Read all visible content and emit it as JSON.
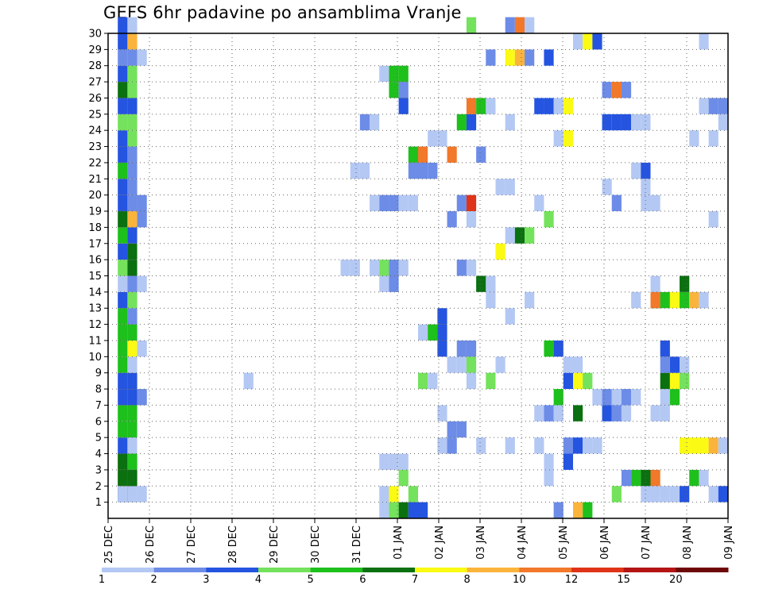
{
  "chart_data": {
    "type": "heatmap",
    "title": "GEFS 6hr padavine po ansamblima Vranje",
    "y_ticks": [
      "1",
      "2",
      "3",
      "4",
      "5",
      "6",
      "7",
      "8",
      "9",
      "10",
      "11",
      "12",
      "13",
      "14",
      "15",
      "16",
      "17",
      "18",
      "19",
      "20",
      "21",
      "22",
      "23",
      "24",
      "25",
      "26",
      "27",
      "28",
      "29",
      "30"
    ],
    "ylim": [
      0,
      30
    ],
    "x_ticks": [
      "25 DEC",
      "26 DEC",
      "27 DEC",
      "28 DEC",
      "29 DEC",
      "30 DEC",
      "31 DEC",
      "01 JAN",
      "02 JAN",
      "03 JAN",
      "04 JAN",
      "05 JAN",
      "06 JAN",
      "07 JAN",
      "08 JAN",
      "09 JAN"
    ],
    "xlim_steps": [
      0,
      60
    ],
    "grid": true,
    "colorbar": {
      "labels": [
        "1",
        "2",
        "3",
        "4",
        "5",
        "6",
        "7",
        "8",
        "10",
        "12",
        "15",
        "20"
      ],
      "colors": [
        "#b4c8f4",
        "#6c8ce8",
        "#2454e0",
        "#74e25c",
        "#1ec01c",
        "#0a7010",
        "#fafa14",
        "#fab43c",
        "#f2782a",
        "#e03418",
        "#b41414",
        "#6e0808"
      ]
    },
    "cells": [
      [
        1,
        1,
        2
      ],
      [
        1,
        1,
        0
      ],
      [
        1,
        2,
        7
      ],
      [
        1,
        2,
        5
      ],
      [
        1,
        3,
        7
      ],
      [
        1,
        3,
        5
      ],
      [
        1,
        4,
        2
      ],
      [
        1,
        5,
        4
      ],
      [
        1,
        6,
        4
      ],
      [
        1,
        7,
        2
      ],
      [
        1,
        8,
        2
      ],
      [
        1,
        9,
        4
      ],
      [
        1,
        10,
        4
      ],
      [
        1,
        11,
        4
      ],
      [
        1,
        12,
        4
      ],
      [
        1,
        13,
        2
      ],
      [
        1,
        14,
        0
      ],
      [
        1,
        15,
        3
      ],
      [
        1,
        16,
        2
      ],
      [
        1,
        17,
        4
      ],
      [
        1,
        18,
        5
      ],
      [
        1,
        19,
        2
      ],
      [
        1,
        20,
        2
      ],
      [
        1,
        21,
        4
      ],
      [
        1,
        22,
        2
      ],
      [
        1,
        23,
        2
      ],
      [
        1,
        24,
        3
      ],
      [
        1,
        25,
        2
      ],
      [
        1,
        26,
        5
      ],
      [
        1,
        27,
        2
      ],
      [
        1,
        28,
        1
      ],
      [
        1,
        29,
        2
      ],
      [
        1,
        30,
        2
      ],
      [
        2,
        1,
        4
      ],
      [
        2,
        1,
        0
      ],
      [
        2,
        2,
        5
      ],
      [
        2,
        2,
        5
      ],
      [
        2,
        3,
        4
      ],
      [
        2,
        3,
        4
      ],
      [
        2,
        4,
        0
      ],
      [
        2,
        5,
        4
      ],
      [
        2,
        6,
        4
      ],
      [
        2,
        7,
        2
      ],
      [
        2,
        8,
        2
      ],
      [
        2,
        9,
        0
      ],
      [
        2,
        10,
        6
      ],
      [
        2,
        11,
        4
      ],
      [
        2,
        12,
        1
      ],
      [
        2,
        13,
        3
      ],
      [
        2,
        14,
        1
      ],
      [
        2,
        15,
        5
      ],
      [
        2,
        16,
        5
      ],
      [
        2,
        17,
        2
      ],
      [
        2,
        18,
        7
      ],
      [
        2,
        19,
        1
      ],
      [
        2,
        20,
        1
      ],
      [
        2,
        21,
        1
      ],
      [
        2,
        22,
        1
      ],
      [
        2,
        23,
        3
      ],
      [
        2,
        24,
        3
      ],
      [
        2,
        25,
        2
      ],
      [
        2,
        26,
        3
      ],
      [
        2,
        27,
        3
      ],
      [
        2,
        28,
        1
      ],
      [
        2,
        29,
        7
      ],
      [
        2,
        30,
        0
      ],
      [
        3,
        1,
        0
      ],
      [
        3,
        7,
        1
      ],
      [
        3,
        10,
        0
      ],
      [
        3,
        14,
        0
      ],
      [
        3,
        18,
        1
      ],
      [
        3,
        19,
        1
      ],
      [
        3,
        28,
        0
      ],
      [
        14,
        8,
        0
      ],
      [
        24,
        15,
        0
      ],
      [
        25,
        15,
        0
      ],
      [
        25,
        21,
        0
      ],
      [
        26,
        21,
        0
      ],
      [
        26,
        24,
        1
      ],
      [
        27,
        24,
        0
      ],
      [
        27,
        15,
        0
      ],
      [
        27,
        19,
        0
      ],
      [
        28,
        19,
        1
      ],
      [
        29,
        19,
        1
      ],
      [
        28,
        15,
        3
      ],
      [
        29,
        15,
        3
      ],
      [
        28,
        0,
        0
      ],
      [
        28,
        1,
        0
      ],
      [
        28,
        3,
        0
      ],
      [
        29,
        3,
        0
      ],
      [
        28,
        14,
        0
      ],
      [
        28,
        27,
        0
      ],
      [
        29,
        1,
        6
      ],
      [
        29,
        0,
        3
      ],
      [
        29,
        14,
        1
      ],
      [
        29,
        15,
        1
      ],
      [
        29,
        27,
        4
      ],
      [
        29,
        26,
        4
      ],
      [
        30,
        2,
        3
      ],
      [
        30,
        3,
        0
      ],
      [
        30,
        15,
        0
      ],
      [
        30,
        19,
        0
      ],
      [
        30,
        26,
        1
      ],
      [
        30,
        25,
        2
      ],
      [
        30,
        27,
        4
      ],
      [
        30,
        0,
        5
      ],
      [
        31,
        1,
        3
      ],
      [
        31,
        19,
        0
      ],
      [
        31,
        22,
        4
      ],
      [
        31,
        21,
        1
      ],
      [
        31,
        0,
        2
      ],
      [
        32,
        21,
        1
      ],
      [
        32,
        22,
        8
      ],
      [
        32,
        11,
        0
      ],
      [
        32,
        8,
        3
      ],
      [
        32,
        0,
        2
      ],
      [
        33,
        11,
        4
      ],
      [
        33,
        8,
        0
      ],
      [
        33,
        23,
        0
      ],
      [
        33,
        21,
        1
      ],
      [
        34,
        4,
        0
      ],
      [
        34,
        6,
        0
      ],
      [
        34,
        12,
        2
      ],
      [
        34,
        11,
        2
      ],
      [
        34,
        10,
        2
      ],
      [
        34,
        23,
        0
      ],
      [
        35,
        4,
        1
      ],
      [
        35,
        9,
        0
      ],
      [
        35,
        22,
        8
      ],
      [
        35,
        5,
        1
      ],
      [
        35,
        18,
        1
      ],
      [
        36,
        24,
        4
      ],
      [
        36,
        5,
        1
      ],
      [
        36,
        15,
        1
      ],
      [
        36,
        9,
        0
      ],
      [
        36,
        10,
        1
      ],
      [
        36,
        19,
        1
      ],
      [
        37,
        9,
        3
      ],
      [
        37,
        10,
        1
      ],
      [
        37,
        19,
        9
      ],
      [
        37,
        24,
        2
      ],
      [
        37,
        25,
        8
      ],
      [
        37,
        18,
        0
      ],
      [
        37,
        8,
        0
      ],
      [
        37,
        15,
        0
      ],
      [
        37,
        30,
        3
      ],
      [
        38,
        25,
        4
      ],
      [
        38,
        14,
        5
      ],
      [
        38,
        4,
        0
      ],
      [
        38,
        22,
        1
      ],
      [
        39,
        25,
        0
      ],
      [
        39,
        8,
        3
      ],
      [
        39,
        28,
        1
      ],
      [
        39,
        14,
        0
      ],
      [
        39,
        13,
        0
      ],
      [
        40,
        9,
        0
      ],
      [
        40,
        16,
        6
      ],
      [
        40,
        20,
        0
      ],
      [
        41,
        4,
        0
      ],
      [
        41,
        20,
        0
      ],
      [
        41,
        30,
        1
      ],
      [
        41,
        17,
        0
      ],
      [
        41,
        24,
        0
      ],
      [
        41,
        28,
        6
      ],
      [
        41,
        12,
        0
      ],
      [
        42,
        30,
        8
      ],
      [
        42,
        17,
        5
      ],
      [
        42,
        28,
        7
      ],
      [
        43,
        17,
        3
      ],
      [
        43,
        30,
        0
      ],
      [
        43,
        28,
        1
      ],
      [
        43,
        13,
        0
      ],
      [
        44,
        4,
        0
      ],
      [
        44,
        6,
        0
      ],
      [
        44,
        19,
        0
      ],
      [
        44,
        25,
        2
      ],
      [
        45,
        2,
        0
      ],
      [
        45,
        3,
        0
      ],
      [
        45,
        6,
        1
      ],
      [
        45,
        10,
        4
      ],
      [
        45,
        18,
        3
      ],
      [
        45,
        25,
        2
      ],
      [
        45,
        28,
        2
      ],
      [
        46,
        7,
        4
      ],
      [
        46,
        6,
        0
      ],
      [
        46,
        10,
        2
      ],
      [
        46,
        25,
        0
      ],
      [
        46,
        23,
        0
      ],
      [
        46,
        0,
        1
      ],
      [
        47,
        4,
        1
      ],
      [
        47,
        8,
        2
      ],
      [
        47,
        9,
        0
      ],
      [
        47,
        25,
        6
      ],
      [
        47,
        23,
        6
      ],
      [
        47,
        3,
        2
      ],
      [
        48,
        4,
        2
      ],
      [
        48,
        6,
        5
      ],
      [
        48,
        8,
        6
      ],
      [
        48,
        9,
        0
      ],
      [
        48,
        29,
        0
      ],
      [
        48,
        0,
        7
      ],
      [
        49,
        4,
        0
      ],
      [
        49,
        8,
        3
      ],
      [
        49,
        29,
        6
      ],
      [
        49,
        0,
        4
      ],
      [
        50,
        4,
        0
      ],
      [
        50,
        7,
        0
      ],
      [
        50,
        29,
        2
      ],
      [
        51,
        26,
        1
      ],
      [
        51,
        6,
        2
      ],
      [
        51,
        7,
        1
      ],
      [
        51,
        20,
        0
      ],
      [
        51,
        24,
        2
      ],
      [
        52,
        1,
        3
      ],
      [
        52,
        26,
        8
      ],
      [
        52,
        6,
        1
      ],
      [
        52,
        7,
        0
      ],
      [
        52,
        19,
        1
      ],
      [
        52,
        24,
        2
      ],
      [
        53,
        2,
        1
      ],
      [
        53,
        26,
        1
      ],
      [
        53,
        6,
        0
      ],
      [
        53,
        7,
        1
      ],
      [
        53,
        24,
        2
      ],
      [
        54,
        2,
        4
      ],
      [
        54,
        7,
        0
      ],
      [
        54,
        13,
        0
      ],
      [
        54,
        21,
        0
      ],
      [
        54,
        24,
        0
      ],
      [
        55,
        1,
        0
      ],
      [
        55,
        2,
        5
      ],
      [
        55,
        21,
        2
      ],
      [
        55,
        24,
        0
      ],
      [
        55,
        20,
        0
      ],
      [
        55,
        19,
        0
      ],
      [
        56,
        1,
        0
      ],
      [
        56,
        2,
        8
      ],
      [
        56,
        13,
        5
      ],
      [
        56,
        6,
        0
      ],
      [
        56,
        13,
        8
      ],
      [
        56,
        14,
        0
      ],
      [
        56,
        19,
        0
      ],
      [
        57,
        13,
        4
      ],
      [
        57,
        8,
        5
      ],
      [
        57,
        9,
        1
      ],
      [
        57,
        10,
        2
      ],
      [
        57,
        7,
        0
      ],
      [
        57,
        6,
        0
      ],
      [
        57,
        1,
        0
      ],
      [
        58,
        13,
        6
      ],
      [
        58,
        8,
        6
      ],
      [
        58,
        9,
        2
      ],
      [
        58,
        7,
        4
      ],
      [
        58,
        1,
        0
      ],
      [
        59,
        1,
        2
      ],
      [
        59,
        4,
        6
      ],
      [
        59,
        13,
        4
      ],
      [
        59,
        9,
        0
      ],
      [
        59,
        14,
        5
      ],
      [
        59,
        8,
        3
      ],
      [
        60,
        4,
        6
      ],
      [
        60,
        13,
        7
      ],
      [
        60,
        23,
        0
      ],
      [
        60,
        2,
        4
      ],
      [
        61,
        4,
        6
      ],
      [
        61,
        13,
        0
      ],
      [
        61,
        2,
        0
      ],
      [
        61,
        29,
        0
      ],
      [
        61,
        25,
        0
      ],
      [
        62,
        4,
        7
      ],
      [
        62,
        1,
        0
      ],
      [
        62,
        18,
        0
      ],
      [
        62,
        23,
        0
      ],
      [
        62,
        25,
        1
      ],
      [
        63,
        4,
        0
      ],
      [
        63,
        1,
        2
      ],
      [
        63,
        25,
        1
      ],
      [
        63,
        24,
        0
      ]
    ]
  }
}
